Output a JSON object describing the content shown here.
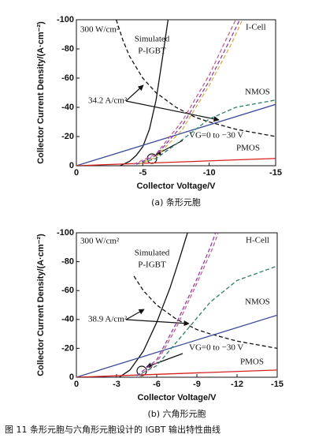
{
  "chart_data": [
    {
      "type": "line",
      "xlabel": "Collector Voltage/V",
      "ylabel": "Collector Current Density/(A·cm⁻²)",
      "caption": "(a) 条形元胞",
      "xlim": [
        0,
        -15
      ],
      "ylim": [
        0,
        -100
      ],
      "xticks": [
        0,
        -5,
        -10,
        -15
      ],
      "yticks": [
        0,
        -20,
        -40,
        -60,
        -80,
        -100
      ],
      "annotations": [
        "300 W/cm²",
        "Simulated",
        "P-IGBT",
        "I-Cell",
        "NMOS",
        "PMOS",
        "34.2 A/cm²",
        "VG=0 to −30 V"
      ],
      "series": [
        {
          "color": "#111111",
          "dash": false,
          "x": [
            -3.3,
            -4,
            -4.5,
            -5,
            -5.5,
            -6,
            -6.5,
            -6.9
          ],
          "values": [
            0,
            -3,
            -7,
            -13,
            -25,
            -45,
            -75,
            -100
          ]
        },
        {
          "color": "#111111",
          "dash": true,
          "x": [
            -3,
            -3.5,
            -4,
            -5,
            -6,
            -7.5,
            -9,
            -10,
            -12,
            -15
          ],
          "values": [
            -100,
            -86,
            -75,
            -60,
            -50,
            -40,
            -33,
            -30,
            -25,
            -20
          ]
        },
        {
          "color": "#3b4a9a",
          "dash": false,
          "x": [
            0,
            -15
          ],
          "values": [
            0,
            -42
          ]
        },
        {
          "color": "#d62020",
          "dash": false,
          "x": [
            0,
            -15
          ],
          "values": [
            0,
            -5
          ]
        },
        {
          "color": "#2e7d6a",
          "dash": true,
          "x": [
            -4.5,
            -6,
            -8,
            -10,
            -12,
            -15
          ],
          "values": [
            -1,
            -5,
            -18,
            -32,
            -40,
            -45
          ]
        },
        {
          "color": "#8a3fa8",
          "dash": true,
          "x": [
            -4.5,
            -6,
            -8,
            -10,
            -11.5,
            -12.3
          ],
          "values": [
            -1,
            -7,
            -28,
            -58,
            -85,
            -100
          ]
        },
        {
          "color": "#d4b040",
          "dash": true,
          "x": [
            -4.7,
            -6,
            -8,
            -10,
            -11.7,
            -12.5
          ],
          "values": [
            -1,
            -6,
            -25,
            -55,
            -84,
            -100
          ]
        },
        {
          "color": "#c0608a",
          "dash": true,
          "x": [
            -4.3,
            -6,
            -8,
            -10,
            -11.3,
            -12
          ],
          "values": [
            -1,
            -8,
            -31,
            -62,
            -87,
            -100
          ]
        }
      ]
    },
    {
      "type": "line",
      "xlabel": "Collector Voltage/V",
      "ylabel": "Collector Current Density/(A·cm⁻²)",
      "caption": "(b) 六角形元胞",
      "xlim": [
        0,
        -15
      ],
      "ylim": [
        0,
        -100
      ],
      "xticks": [
        0,
        -3,
        -6,
        -9,
        -12,
        -15
      ],
      "yticks": [
        0,
        -20,
        -40,
        -60,
        -80,
        -100
      ],
      "annotations": [
        "300 W/cm²",
        "Simulated",
        "P-IGBT",
        "H-Cell",
        "NMOS",
        "PMOS",
        "38.9 A/cm²",
        "VG=0 to −30 V"
      ],
      "series": [
        {
          "color": "#111111",
          "dash": false,
          "x": [
            -3.2,
            -4,
            -5,
            -6,
            -7,
            -7.7,
            -8.3
          ],
          "values": [
            0,
            -5,
            -18,
            -38,
            -62,
            -82,
            -100
          ]
        },
        {
          "color": "#111111",
          "dash": true,
          "x": [
            -4.3,
            -5,
            -6,
            -7.5,
            -9,
            -10,
            -12,
            -15
          ],
          "values": [
            -70,
            -60,
            -50,
            -40,
            -33,
            -30,
            -25,
            -20
          ]
        },
        {
          "color": "#3b4a9a",
          "dash": false,
          "x": [
            0,
            -15
          ],
          "values": [
            0,
            -43
          ]
        },
        {
          "color": "#d62020",
          "dash": false,
          "x": [
            0,
            -15
          ],
          "values": [
            0,
            -5
          ]
        },
        {
          "color": "#2e7d6a",
          "dash": true,
          "x": [
            -4.5,
            -6,
            -8,
            -10,
            -12,
            -15
          ],
          "values": [
            -1,
            -8,
            -30,
            -52,
            -67,
            -77
          ]
        },
        {
          "color": "#8a3fa8",
          "dash": true,
          "x": [
            -4.5,
            -6,
            -7.5,
            -9,
            -10,
            -10.4
          ],
          "values": [
            -1,
            -12,
            -38,
            -68,
            -90,
            -100
          ]
        },
        {
          "color": "#c0608a",
          "dash": true,
          "x": [
            -4.7,
            -6,
            -7.5,
            -9,
            -10.2,
            -10.6
          ],
          "values": [
            -1,
            -10,
            -35,
            -65,
            -90,
            -100
          ]
        }
      ]
    }
  ],
  "figure_caption": "图 11  条形元胞与六角形元胞设计的 IGBT 输出特性曲线"
}
